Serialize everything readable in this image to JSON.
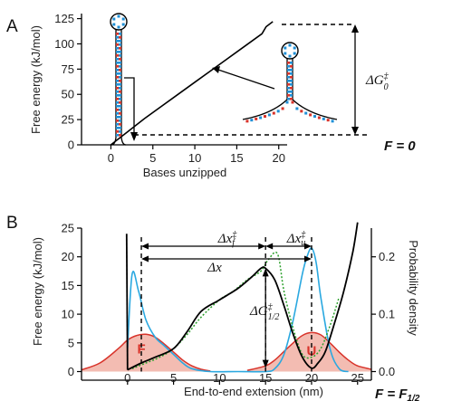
{
  "chart_data": [
    {
      "panel": "A",
      "type": "line",
      "xlabel": "Bases unzipped",
      "ylabel": "Free energy (kJ/mol)",
      "xlim": [
        -3.5,
        21
      ],
      "ylim": [
        0,
        130
      ],
      "xticks": [
        "0",
        "5",
        "10",
        "15",
        "20"
      ],
      "yticks": [
        "0",
        "25",
        "50",
        "75",
        "100",
        "125"
      ],
      "series": [
        {
          "x": [
            0,
            2,
            4,
            6,
            8,
            10,
            12,
            14,
            16,
            18,
            18.5,
            19.3
          ],
          "y": [
            0,
            13,
            26,
            38,
            50,
            62,
            74,
            86,
            98,
            110,
            117,
            122
          ]
        }
      ],
      "annotations": {
        "delta_g_label": "ΔG‡0",
        "force_label": "F = 0"
      },
      "colors": {
        "line": "#000000",
        "bead_blue": "#1f8fd6",
        "bead_red": "#d8332a"
      }
    },
    {
      "panel": "B",
      "type": "line",
      "xlabel": "End-to-end extension (nm)",
      "ylabel": "Free energy (kJ/mol)",
      "ylabel_right": "Probability density",
      "xlim": [
        -5,
        26.5
      ],
      "ylim": [
        -1.5,
        25
      ],
      "ylim_right": [
        0,
        0.25
      ],
      "xticks": [
        "0",
        "5",
        "10",
        "15",
        "20",
        "25"
      ],
      "yticks": [
        "0",
        "5",
        "10",
        "15",
        "20",
        "25"
      ],
      "yticks_right": [
        "0.0",
        "0.1",
        "0.2"
      ],
      "series": [
        {
          "role": "energy",
          "color": "#000000",
          "x": [
            0,
            1.5,
            3,
            5,
            6.5,
            8,
            10,
            12,
            13.5,
            14.5,
            15,
            16,
            17,
            18,
            19,
            20,
            20.7,
            21.5,
            22.5,
            23.5,
            24.5,
            25
          ],
          "y": [
            0.3,
            1.5,
            2.5,
            4,
            7,
            10.5,
            12.5,
            14.5,
            16.5,
            18,
            18,
            16,
            11.5,
            6.5,
            2.5,
            0.6,
            1.5,
            3.5,
            8.5,
            14,
            21,
            26
          ]
        },
        {
          "role": "measured",
          "color": "#2ca02c",
          "dash": "2 2",
          "x": [
            0.5,
            2,
            3.5,
            5,
            6.5,
            8,
            10,
            11.5,
            13,
            14.5,
            15.3,
            16.3,
            17,
            18,
            19,
            20,
            21,
            22,
            23
          ],
          "y": [
            0.5,
            1.5,
            2.5,
            4,
            6.5,
            9.5,
            12.5,
            14,
            16,
            17.5,
            19.5,
            20.5,
            14,
            7.5,
            3,
            2.5,
            4,
            8,
            13
          ]
        },
        {
          "role": "prob_blue",
          "color": "#2aa8e0",
          "x": [
            0,
            0.5,
            1.2,
            2,
            3,
            4,
            5,
            6,
            7,
            9,
            12,
            15,
            16,
            17,
            18,
            19,
            19.5,
            20,
            20.5,
            21,
            22,
            23,
            24
          ],
          "y": [
            0.04,
            0.17,
            0.14,
            0.09,
            0.06,
            0.045,
            0.03,
            0.015,
            0.005,
            0,
            0,
            0,
            0.005,
            0.03,
            0.09,
            0.17,
            0.2,
            0.215,
            0.19,
            0.13,
            0.04,
            0.005,
            0
          ]
        },
        {
          "role": "prob_F",
          "color": "#d8332a",
          "fill": "#f3bcb2",
          "x": [
            -5,
            -3,
            -1,
            0,
            1,
            2,
            3,
            4,
            5,
            6,
            7,
            8,
            9
          ],
          "y": [
            0.003,
            0.015,
            0.04,
            0.055,
            0.063,
            0.065,
            0.06,
            0.048,
            0.034,
            0.02,
            0.01,
            0.004,
            0.001
          ]
        },
        {
          "role": "prob_U",
          "color": "#d8332a",
          "fill": "#f3bcb2",
          "x": [
            13,
            15,
            16,
            17,
            18,
            19,
            20,
            21,
            22,
            23,
            24,
            25,
            26.5
          ],
          "y": [
            0.002,
            0.01,
            0.02,
            0.035,
            0.05,
            0.063,
            0.068,
            0.064,
            0.05,
            0.034,
            0.02,
            0.01,
            0.004
          ]
        }
      ],
      "annotations": {
        "F_label": "F",
        "U_label": "U",
        "dx_f": "Δx‡f",
        "dx_u": "Δx‡u",
        "dx": "Δx",
        "delta_g_half": "ΔG‡1/2",
        "force_label": "F = F1/2"
      }
    }
  ]
}
